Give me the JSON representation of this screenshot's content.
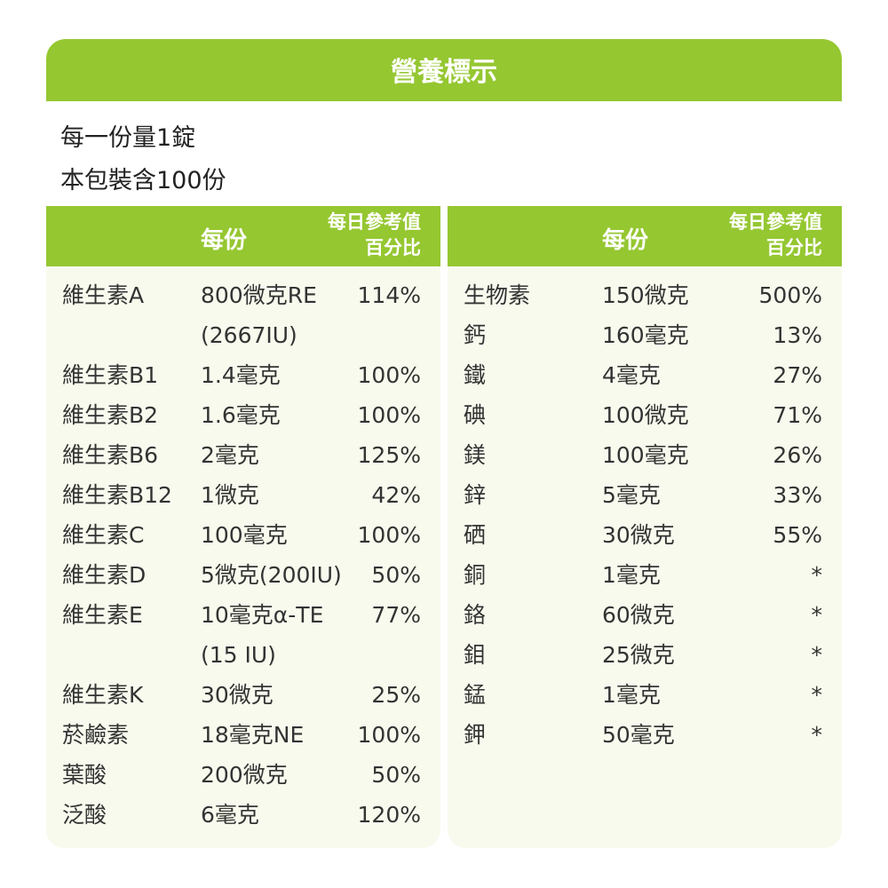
{
  "title": "營養標示",
  "serving_size": "每一份量1錠",
  "servings_per_package": "本包裝含100份",
  "columns": {
    "per_serving": "每份",
    "daily_value_line1": "每日參考值",
    "daily_value_line2": "百分比"
  },
  "left_rows": [
    {
      "name": "維生素A",
      "amount": "800微克RE",
      "pct": "114%"
    },
    {
      "name": "",
      "amount": "(2667IU)",
      "pct": ""
    },
    {
      "name": "維生素B1",
      "amount": "1.4毫克",
      "pct": "100%"
    },
    {
      "name": "維生素B2",
      "amount": "1.6毫克",
      "pct": "100%"
    },
    {
      "name": "維生素B6",
      "amount": "2毫克",
      "pct": "125%"
    },
    {
      "name": "維生素B12",
      "amount": "1微克",
      "pct": "42%"
    },
    {
      "name": "維生素C",
      "amount": "100毫克",
      "pct": "100%"
    },
    {
      "name": "維生素D",
      "amount": "5微克(200IU)",
      "pct": "50%"
    },
    {
      "name": "維生素E",
      "amount": "10毫克α-TE",
      "pct": "77%"
    },
    {
      "name": "",
      "amount": "(15 IU)",
      "pct": ""
    },
    {
      "name": "維生素K",
      "amount": "30微克",
      "pct": "25%"
    },
    {
      "name": "菸鹼素",
      "amount": "18毫克NE",
      "pct": "100%"
    },
    {
      "name": "葉酸",
      "amount": "200微克",
      "pct": "50%"
    },
    {
      "name": "泛酸",
      "amount": "6毫克",
      "pct": "120%"
    }
  ],
  "right_rows": [
    {
      "name": "生物素",
      "amount": "150微克",
      "pct": "500%"
    },
    {
      "name": "鈣",
      "amount": "160毫克",
      "pct": "13%"
    },
    {
      "name": "鐵",
      "amount": "4毫克",
      "pct": "27%"
    },
    {
      "name": "碘",
      "amount": "100微克",
      "pct": "71%"
    },
    {
      "name": "鎂",
      "amount": "100毫克",
      "pct": "26%"
    },
    {
      "name": "鋅",
      "amount": "5毫克",
      "pct": "33%"
    },
    {
      "name": "硒",
      "amount": "30微克",
      "pct": "55%"
    },
    {
      "name": "銅",
      "amount": "1毫克",
      "pct": "*"
    },
    {
      "name": "鉻",
      "amount": "60微克",
      "pct": "*"
    },
    {
      "name": "鉬",
      "amount": "25微克",
      "pct": "*"
    },
    {
      "name": "錳",
      "amount": "1毫克",
      "pct": "*"
    },
    {
      "name": "鉀",
      "amount": "50毫克",
      "pct": "*"
    }
  ],
  "colors": {
    "accent": "#95c731",
    "panel_bg": "#f9faee"
  }
}
